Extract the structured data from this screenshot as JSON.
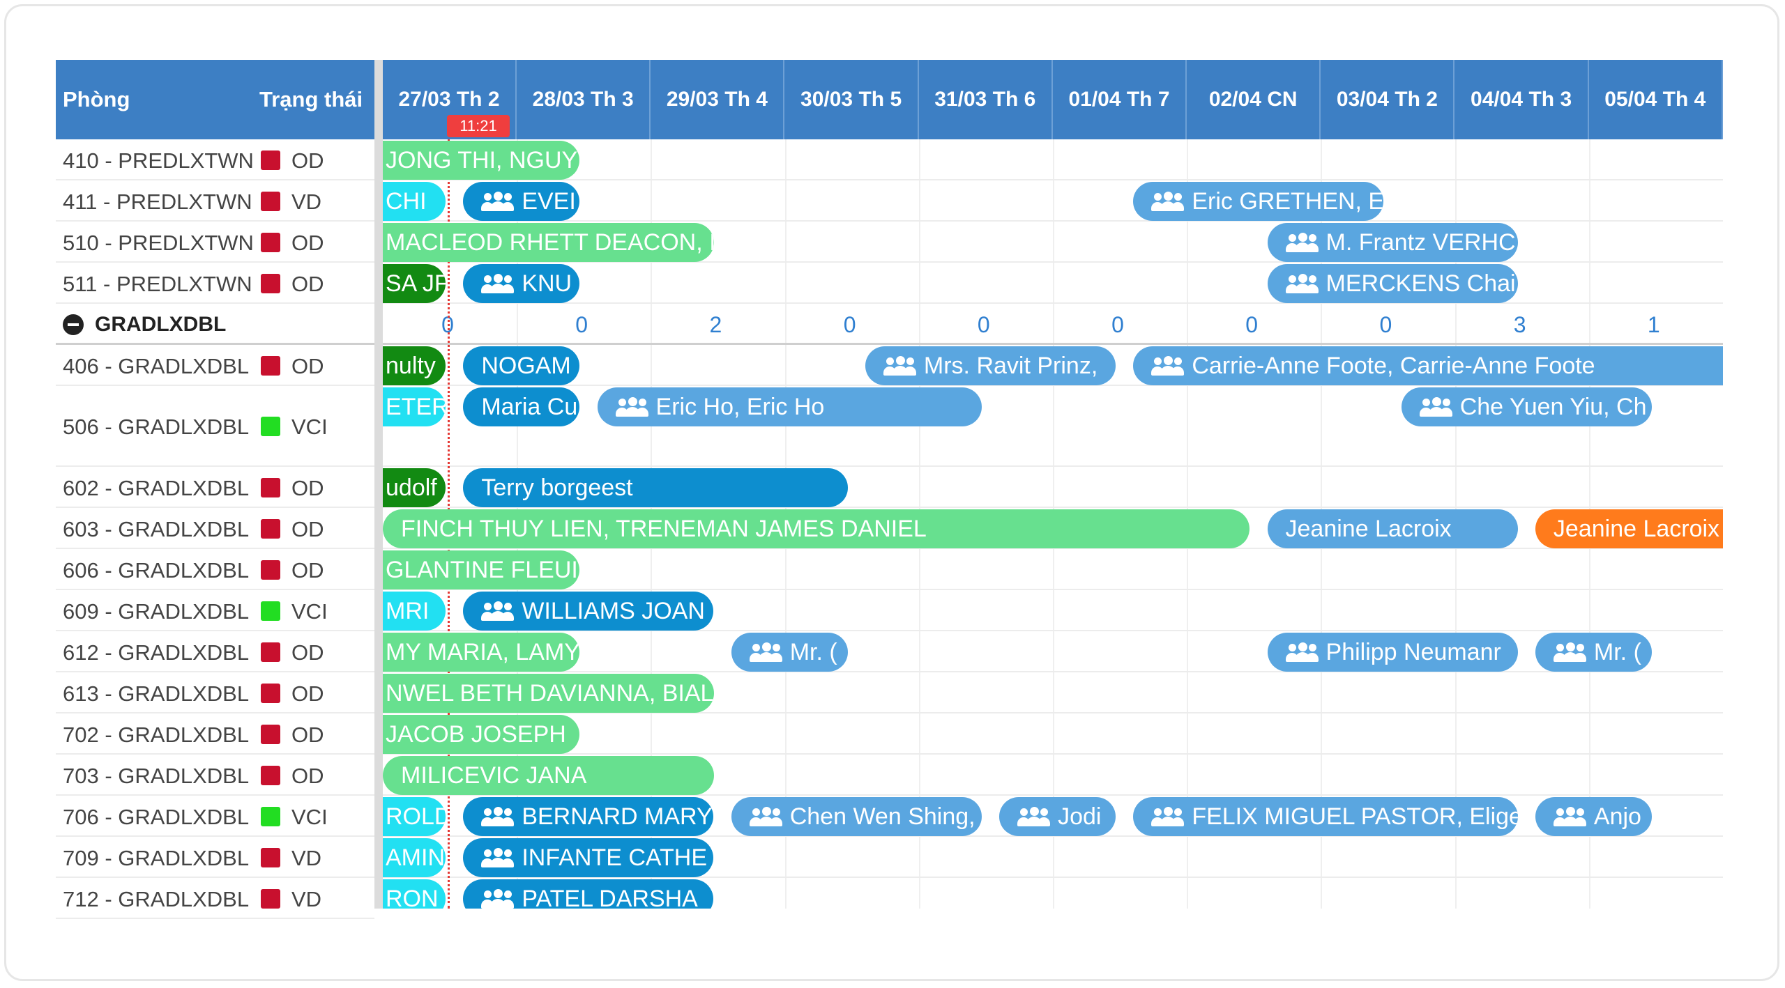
{
  "header": {
    "room_label": "Phòng",
    "status_label": "Trạng thái",
    "dates": [
      "27/03 Th 2",
      "28/03 Th 3",
      "29/03 Th 4",
      "30/03 Th 5",
      "31/03 Th 6",
      "01/04 Th 7",
      "02/04 CN",
      "03/04 Th 2",
      "04/04 Th 3",
      "05/04 Th 4"
    ],
    "now_time": "11:21"
  },
  "colors": {
    "header_bg": "#3d7fc4",
    "status_red": "#c8102e",
    "status_green": "#22dd22",
    "booking_blue": "#5aa6e0",
    "booking_darkblue": "#0d8ecf",
    "booking_lightgreen": "#67e08f",
    "booking_darkgreen": "#128a12",
    "booking_cyan": "#22e0f2",
    "booking_orange": "#ff7b1c",
    "now_red": "#ef3e3e"
  },
  "rows": [
    {
      "kind": "room",
      "name": "410 - PREDLXTWN",
      "status": "OD",
      "status_color": "red"
    },
    {
      "kind": "room",
      "name": "411 - PREDLXTWN",
      "status": "VD",
      "status_color": "red"
    },
    {
      "kind": "room",
      "name": "510 - PREDLXTWN",
      "status": "OD",
      "status_color": "red"
    },
    {
      "kind": "room",
      "name": "511 - PREDLXTWN",
      "status": "OD",
      "status_color": "red"
    },
    {
      "kind": "group",
      "name": "GRADLXDBL",
      "counts": [
        "0",
        "0",
        "2",
        "0",
        "0",
        "0",
        "0",
        "0",
        "3",
        "1"
      ]
    },
    {
      "kind": "room",
      "name": "406 - GRADLXDBL",
      "status": "OD",
      "status_color": "red"
    },
    {
      "kind": "room",
      "name": "506 - GRADLXDBL",
      "status": "VCI",
      "status_color": "green"
    },
    {
      "kind": "room",
      "name": "602 - GRADLXDBL",
      "status": "OD",
      "status_color": "red"
    },
    {
      "kind": "room",
      "name": "603 - GRADLXDBL",
      "status": "OD",
      "status_color": "red"
    },
    {
      "kind": "room",
      "name": "606 - GRADLXDBL",
      "status": "OD",
      "status_color": "red"
    },
    {
      "kind": "room",
      "name": "609 - GRADLXDBL",
      "status": "VCI",
      "status_color": "green"
    },
    {
      "kind": "room",
      "name": "612 - GRADLXDBL",
      "status": "OD",
      "status_color": "red"
    },
    {
      "kind": "room",
      "name": "613 - GRADLXDBL",
      "status": "OD",
      "status_color": "red"
    },
    {
      "kind": "room",
      "name": "702 - GRADLXDBL",
      "status": "OD",
      "status_color": "red"
    },
    {
      "kind": "room",
      "name": "703 - GRADLXDBL",
      "status": "OD",
      "status_color": "red"
    },
    {
      "kind": "room",
      "name": "706 - GRADLXDBL",
      "status": "VCI",
      "status_color": "green"
    },
    {
      "kind": "room",
      "name": "709 - GRADLXDBL",
      "status": "VD",
      "status_color": "red"
    },
    {
      "kind": "room",
      "name": "712 - GRADLXDBL",
      "status": "VD",
      "status_color": "red"
    }
  ],
  "bookings": [
    {
      "row": 0,
      "start": 0,
      "end": 1.5,
      "label": "JONG THI, NGUYE",
      "color": "booking_lightgreen",
      "clip": true,
      "group": false
    },
    {
      "row": 1,
      "start": 0,
      "end": 0.5,
      "label": "CHI",
      "color": "booking_cyan",
      "clip": true,
      "group": false
    },
    {
      "row": 1,
      "start": 0.6,
      "end": 1.5,
      "label": "EVEI",
      "color": "booking_darkblue",
      "clip": false,
      "group": true
    },
    {
      "row": 1,
      "start": 5.6,
      "end": 7.5,
      "label": "Eric GRETHEN, E",
      "color": "booking_blue",
      "clip": false,
      "group": true
    },
    {
      "row": 2,
      "start": 0,
      "end": 2.5,
      "label": "MACLEOD RHETT DEACON, I",
      "color": "booking_lightgreen",
      "clip": true,
      "group": false
    },
    {
      "row": 2,
      "start": 6.6,
      "end": 8.5,
      "label": "M. Frantz VERHC",
      "color": "booking_blue",
      "clip": false,
      "group": true
    },
    {
      "row": 3,
      "start": 0,
      "end": 0.5,
      "label": "SA JF",
      "color": "booking_darkgreen",
      "clip": true,
      "group": false
    },
    {
      "row": 3,
      "start": 0.6,
      "end": 1.5,
      "label": "KNU",
      "color": "booking_darkblue",
      "clip": false,
      "group": true
    },
    {
      "row": 3,
      "start": 6.6,
      "end": 8.5,
      "label": "MERCKENS Chai",
      "color": "booking_blue",
      "clip": false,
      "group": true
    },
    {
      "row": 5,
      "start": 0,
      "end": 0.5,
      "label": "nulty",
      "color": "booking_darkgreen",
      "clip": true,
      "group": false
    },
    {
      "row": 5,
      "start": 0.6,
      "end": 1.5,
      "label": "NOGAM",
      "color": "booking_darkblue",
      "clip": false,
      "group": false
    },
    {
      "row": 5,
      "start": 3.6,
      "end": 5.5,
      "label": "Mrs. Ravit Prinz,",
      "color": "booking_blue",
      "clip": false,
      "group": true
    },
    {
      "row": 5,
      "start": 5.6,
      "end": 10,
      "label": "Carrie-Anne Foote, Carrie-Anne Foote",
      "color": "booking_blue",
      "clip": false,
      "group": true
    },
    {
      "row": 6,
      "start": 0,
      "end": 0.5,
      "label": "ETER",
      "color": "booking_cyan",
      "clip": true,
      "group": false
    },
    {
      "row": 6,
      "start": 0.6,
      "end": 1.5,
      "label": "Maria Cu",
      "color": "booking_darkblue",
      "clip": false,
      "group": false
    },
    {
      "row": 6,
      "start": 1.6,
      "end": 4.5,
      "label": "Eric Ho, Eric Ho",
      "color": "booking_blue",
      "clip": false,
      "group": true
    },
    {
      "row": 6,
      "start": 7.6,
      "end": 9.5,
      "label": "Che Yuen Yiu, Ch",
      "color": "booking_blue",
      "clip": false,
      "group": true
    },
    {
      "row": 7,
      "start": 0,
      "end": 0.5,
      "label": "udolf",
      "color": "booking_darkgreen",
      "clip": true,
      "group": false
    },
    {
      "row": 7,
      "start": 0.6,
      "end": 3.5,
      "label": "Terry borgeest",
      "color": "booking_darkblue",
      "clip": false,
      "group": false
    },
    {
      "row": 8,
      "start": 0,
      "end": 6.5,
      "label": "FINCH THUY LIEN, TRENEMAN JAMES DANIEL",
      "color": "booking_lightgreen",
      "clip": false,
      "group": false
    },
    {
      "row": 8,
      "start": 6.6,
      "end": 8.5,
      "label": "Jeanine Lacroix",
      "color": "booking_blue",
      "clip": false,
      "group": false
    },
    {
      "row": 8,
      "start": 8.6,
      "end": 10,
      "label": "Jeanine Lacroix",
      "color": "booking_orange",
      "clip": false,
      "group": false
    },
    {
      "row": 9,
      "start": 0,
      "end": 1.5,
      "label": "GLANTINE FLEUI",
      "color": "booking_lightgreen",
      "clip": true,
      "group": false
    },
    {
      "row": 10,
      "start": 0,
      "end": 0.5,
      "label": "MRI",
      "color": "booking_cyan",
      "clip": true,
      "group": false
    },
    {
      "row": 10,
      "start": 0.6,
      "end": 2.5,
      "label": "WILLIAMS JOAN",
      "color": "booking_darkblue",
      "clip": false,
      "group": true
    },
    {
      "row": 11,
      "start": 0,
      "end": 1.5,
      "label": "MY MARIA, LAMY",
      "color": "booking_lightgreen",
      "clip": true,
      "group": false
    },
    {
      "row": 11,
      "start": 2.6,
      "end": 3.5,
      "label": "Mr. (",
      "color": "booking_blue",
      "clip": false,
      "group": true
    },
    {
      "row": 11,
      "start": 6.6,
      "end": 8.5,
      "label": "Philipp Neumanr",
      "color": "booking_blue",
      "clip": false,
      "group": true
    },
    {
      "row": 11,
      "start": 8.6,
      "end": 9.5,
      "label": "Mr. (",
      "color": "booking_blue",
      "clip": false,
      "group": true
    },
    {
      "row": 12,
      "start": 0,
      "end": 2.5,
      "label": "NWEL BETH DAVIANNA, BIAL",
      "color": "booking_lightgreen",
      "clip": true,
      "group": false
    },
    {
      "row": 13,
      "start": 0,
      "end": 1.5,
      "label": "JACOB JOSEPH",
      "color": "booking_lightgreen",
      "clip": true,
      "group": false
    },
    {
      "row": 14,
      "start": 0,
      "end": 2.5,
      "label": "MILICEVIC JANA",
      "color": "booking_lightgreen",
      "clip": false,
      "group": false
    },
    {
      "row": 15,
      "start": 0,
      "end": 0.5,
      "label": "ROLD",
      "color": "booking_cyan",
      "clip": true,
      "group": false
    },
    {
      "row": 15,
      "start": 0.6,
      "end": 2.5,
      "label": "BERNARD MARY",
      "color": "booking_darkblue",
      "clip": false,
      "group": true
    },
    {
      "row": 15,
      "start": 2.6,
      "end": 4.5,
      "label": "Chen Wen Shing,",
      "color": "booking_blue",
      "clip": false,
      "group": true
    },
    {
      "row": 15,
      "start": 4.6,
      "end": 5.5,
      "label": "Jodi",
      "color": "booking_blue",
      "clip": false,
      "group": true
    },
    {
      "row": 15,
      "start": 5.6,
      "end": 8.5,
      "label": "FELIX MIGUEL PASTOR, Elige",
      "color": "booking_blue",
      "clip": false,
      "group": true
    },
    {
      "row": 15,
      "start": 8.6,
      "end": 9.5,
      "label": "Anjo",
      "color": "booking_blue",
      "clip": false,
      "group": true
    },
    {
      "row": 16,
      "start": 0,
      "end": 0.5,
      "label": "AMIN",
      "color": "booking_cyan",
      "clip": true,
      "group": false
    },
    {
      "row": 16,
      "start": 0.6,
      "end": 2.5,
      "label": "INFANTE CATHE",
      "color": "booking_darkblue",
      "clip": false,
      "group": true
    },
    {
      "row": 17,
      "start": 0,
      "end": 0.5,
      "label": "RON",
      "color": "booking_cyan",
      "clip": true,
      "group": false
    },
    {
      "row": 17,
      "start": 0.6,
      "end": 2.5,
      "label": "PATEL DARSHA",
      "color": "booking_darkblue",
      "clip": false,
      "group": true
    }
  ]
}
